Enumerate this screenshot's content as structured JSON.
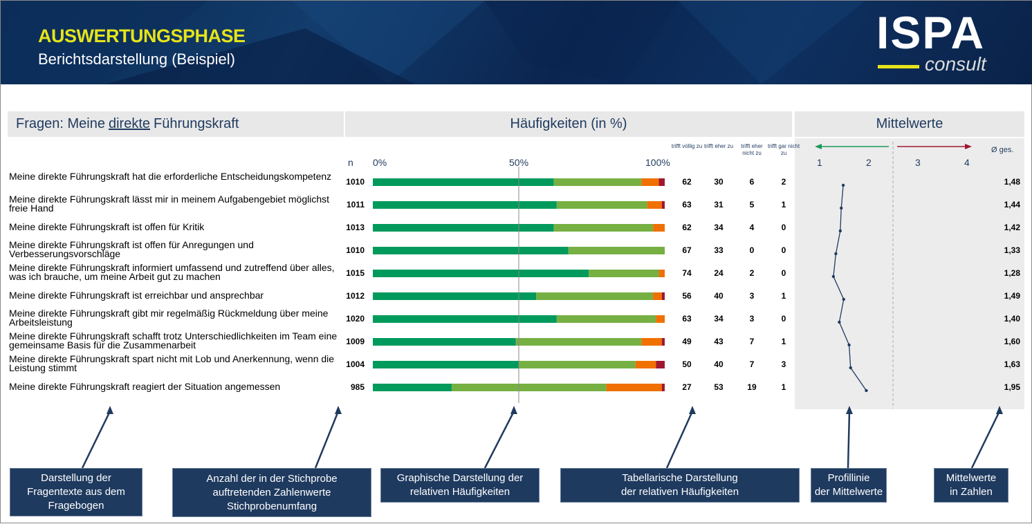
{
  "header": {
    "title": "AUSWERTUNGSPHASE",
    "subtitle": "Berichtsdarstellung (Beispiel)",
    "logo_main": "ISPA",
    "logo_sub": "consult"
  },
  "sections": {
    "questions_pre": "Fragen: Meine ",
    "questions_em": "direkte",
    "questions_post": " Führungskraft",
    "frequencies": "Häufigkeiten (in %)",
    "means": "Mittelwerte"
  },
  "chart_data": {
    "type": "bar",
    "stacked": true,
    "n_label": "n",
    "x_ticks": [
      "0%",
      "50%",
      "100%"
    ],
    "series_names": [
      "trifft völlig zu",
      "trifft eher zu",
      "trifft eher nicht zu",
      "trifft gar nicht zu"
    ],
    "colors": [
      "#009a5c",
      "#76b043",
      "#f07000",
      "#a01830"
    ],
    "mean_scale_ticks": [
      "1",
      "2",
      "3",
      "4"
    ],
    "mean_header": "Ø ges.",
    "rows": [
      {
        "q": "Meine direkte Führungskraft hat die erforderliche Entscheidungskompetenz",
        "n": "1010",
        "v": [
          62,
          30,
          6,
          2
        ],
        "mean": "1,48",
        "m": 1.48
      },
      {
        "q": "Meine direkte Führungskraft lässt mir in meinem Aufgabengebiet möglichst freie Hand",
        "n": "1011",
        "v": [
          63,
          31,
          5,
          1
        ],
        "mean": "1,44",
        "m": 1.44
      },
      {
        "q": "Meine direkte Führungskraft ist offen für Kritik",
        "n": "1013",
        "v": [
          62,
          34,
          4,
          0
        ],
        "mean": "1,42",
        "m": 1.42
      },
      {
        "q": "Meine direkte Führungskraft ist offen für Anregungen und Verbesserungsvorschläge",
        "n": "1010",
        "v": [
          67,
          33,
          0,
          0
        ],
        "mean": "1,33",
        "m": 1.33
      },
      {
        "q": "Meine direkte Führungskraft informiert umfassend und zutreffend über alles, was ich brauche, um meine Arbeit gut zu machen",
        "n": "1015",
        "v": [
          74,
          24,
          2,
          0
        ],
        "mean": "1,28",
        "m": 1.28
      },
      {
        "q": "Meine direkte Führungskraft ist erreichbar und ansprechbar",
        "n": "1012",
        "v": [
          56,
          40,
          3,
          1
        ],
        "mean": "1,49",
        "m": 1.49
      },
      {
        "q": "Meine direkte Führungskraft gibt mir regelmäßig Rückmeldung über meine Arbeitsleistung",
        "n": "1020",
        "v": [
          63,
          34,
          3,
          0
        ],
        "mean": "1,40",
        "m": 1.4
      },
      {
        "q": "Meine direkte Führungskraft schafft trotz Unterschiedlichkeiten im Team eine gemeinsame Basis für die Zusammenarbeit",
        "n": "1009",
        "v": [
          49,
          43,
          7,
          1
        ],
        "mean": "1,60",
        "m": 1.6
      },
      {
        "q": "Meine direkte Führungskraft spart nicht mit Lob und Anerkennung, wenn die Leistung stimmt",
        "n": "1004",
        "v": [
          50,
          40,
          7,
          3
        ],
        "mean": "1,63",
        "m": 1.63
      },
      {
        "q": "Meine direkte Führungskraft reagiert der Situation angemessen",
        "n": "985",
        "v": [
          27,
          53,
          19,
          1
        ],
        "mean": "1,95",
        "m": 1.95
      }
    ]
  },
  "annotations": [
    {
      "label": "Darstellung der\nFragentexte aus dem\nFragebogen"
    },
    {
      "label": "Anzahl der in der Stichprobe\nauftretenden Zahlenwerte\nStichprobenumfang"
    },
    {
      "label": "Graphische Darstellung der\nrelativen Häufigkeiten"
    },
    {
      "label": "Tabellarische Darstellung\nder relativen Häufigkeiten"
    },
    {
      "label": "Profillinie\nder Mittelwerte"
    },
    {
      "label": "Mittelwerte\nin  Zahlen"
    }
  ]
}
